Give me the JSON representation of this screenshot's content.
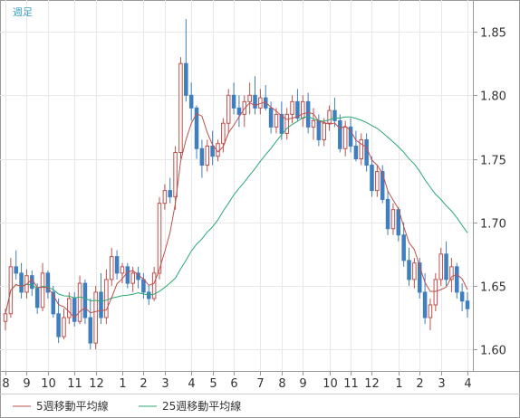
{
  "period_label": "週足",
  "legend": [
    {
      "name": "5週移動平均線",
      "color": "#c0504d"
    },
    {
      "name": "25週移動平均線",
      "color": "#2aa873"
    }
  ],
  "colors": {
    "up": "#c0504d",
    "down": "#3f7fbf",
    "axis": "#999999",
    "grid": "#e8e8e8",
    "period_label": "#3aa0c8"
  },
  "chart_data": {
    "type": "candlestick",
    "title": "",
    "period": "週足",
    "y_ticks": [
      1.6,
      1.65,
      1.7,
      1.75,
      1.8,
      1.85
    ],
    "ylim": [
      1.583,
      1.875
    ],
    "x_ticks": [
      {
        "label": "8",
        "index": 0
      },
      {
        "label": "9",
        "index": 4
      },
      {
        "label": "10",
        "index": 8
      },
      {
        "label": "11",
        "index": 13
      },
      {
        "label": "12",
        "index": 17
      },
      {
        "label": "1",
        "index": 22
      },
      {
        "label": "2",
        "index": 26
      },
      {
        "label": "3",
        "index": 30
      },
      {
        "label": "4",
        "index": 35
      },
      {
        "label": "5",
        "index": 39
      },
      {
        "label": "6",
        "index": 43
      },
      {
        "label": "7",
        "index": 48
      },
      {
        "label": "8",
        "index": 52
      },
      {
        "label": "9",
        "index": 56
      },
      {
        "label": "10",
        "index": 61
      },
      {
        "label": "11",
        "index": 65
      },
      {
        "label": "12",
        "index": 69
      },
      {
        "label": "1",
        "index": 74
      },
      {
        "label": "2",
        "index": 78
      },
      {
        "label": "3",
        "index": 82
      },
      {
        "label": "4",
        "index": 87
      }
    ],
    "candles": [
      [
        1.622,
        1.632,
        1.615,
        1.628
      ],
      [
        1.628,
        1.672,
        1.625,
        1.665
      ],
      [
        1.665,
        1.678,
        1.655,
        1.66
      ],
      [
        1.66,
        1.668,
        1.64,
        1.645
      ],
      [
        1.645,
        1.663,
        1.64,
        1.658
      ],
      [
        1.658,
        1.662,
        1.642,
        1.648
      ],
      [
        1.648,
        1.652,
        1.628,
        1.633
      ],
      [
        1.633,
        1.668,
        1.63,
        1.66
      ],
      [
        1.66,
        1.662,
        1.64,
        1.645
      ],
      [
        1.645,
        1.65,
        1.625,
        1.628
      ],
      [
        1.628,
        1.64,
        1.605,
        1.61
      ],
      [
        1.61,
        1.632,
        1.608,
        1.625
      ],
      [
        1.625,
        1.645,
        1.62,
        1.64
      ],
      [
        1.64,
        1.645,
        1.618,
        1.622
      ],
      [
        1.622,
        1.658,
        1.62,
        1.652
      ],
      [
        1.652,
        1.655,
        1.62,
        1.625
      ],
      [
        1.625,
        1.64,
        1.6,
        1.605
      ],
      [
        1.605,
        1.65,
        1.6,
        1.645
      ],
      [
        1.645,
        1.66,
        1.62,
        1.625
      ],
      [
        1.625,
        1.663,
        1.62,
        1.655
      ],
      [
        1.655,
        1.68,
        1.65,
        1.673
      ],
      [
        1.673,
        1.678,
        1.655,
        1.66
      ],
      [
        1.66,
        1.668,
        1.652,
        1.665
      ],
      [
        1.665,
        1.668,
        1.648,
        1.652
      ],
      [
        1.652,
        1.665,
        1.645,
        1.66
      ],
      [
        1.66,
        1.665,
        1.648,
        1.655
      ],
      [
        1.655,
        1.66,
        1.64,
        1.645
      ],
      [
        1.645,
        1.65,
        1.635,
        1.64
      ],
      [
        1.64,
        1.665,
        1.638,
        1.66
      ],
      [
        1.66,
        1.72,
        1.655,
        1.715
      ],
      [
        1.715,
        1.73,
        1.71,
        1.725
      ],
      [
        1.725,
        1.735,
        1.715,
        1.72
      ],
      [
        1.72,
        1.76,
        1.71,
        1.755
      ],
      [
        1.755,
        1.83,
        1.75,
        1.825
      ],
      [
        1.825,
        1.86,
        1.795,
        1.8
      ],
      [
        1.8,
        1.81,
        1.78,
        1.79
      ],
      [
        1.79,
        1.792,
        1.75,
        1.758
      ],
      [
        1.758,
        1.765,
        1.735,
        1.745
      ],
      [
        1.745,
        1.765,
        1.74,
        1.76
      ],
      [
        1.76,
        1.772,
        1.745,
        1.752
      ],
      [
        1.752,
        1.765,
        1.748,
        1.762
      ],
      [
        1.762,
        1.782,
        1.755,
        1.778
      ],
      [
        1.778,
        1.805,
        1.77,
        1.8
      ],
      [
        1.8,
        1.81,
        1.785,
        1.79
      ],
      [
        1.79,
        1.8,
        1.775,
        1.785
      ],
      [
        1.785,
        1.8,
        1.775,
        1.795
      ],
      [
        1.795,
        1.81,
        1.785,
        1.8
      ],
      [
        1.8,
        1.815,
        1.785,
        1.79
      ],
      [
        1.79,
        1.805,
        1.785,
        1.798
      ],
      [
        1.798,
        1.808,
        1.788,
        1.79
      ],
      [
        1.79,
        1.795,
        1.77,
        1.775
      ],
      [
        1.775,
        1.79,
        1.77,
        1.785
      ],
      [
        1.785,
        1.795,
        1.765,
        1.77
      ],
      [
        1.77,
        1.79,
        1.765,
        1.785
      ],
      [
        1.785,
        1.8,
        1.778,
        1.795
      ],
      [
        1.795,
        1.805,
        1.78,
        1.782
      ],
      [
        1.782,
        1.8,
        1.775,
        1.795
      ],
      [
        1.795,
        1.802,
        1.77,
        1.775
      ],
      [
        1.775,
        1.79,
        1.765,
        1.78
      ],
      [
        1.78,
        1.785,
        1.76,
        1.765
      ],
      [
        1.765,
        1.782,
        1.76,
        1.778
      ],
      [
        1.778,
        1.792,
        1.772,
        1.788
      ],
      [
        1.788,
        1.798,
        1.775,
        1.78
      ],
      [
        1.78,
        1.785,
        1.755,
        1.758
      ],
      [
        1.758,
        1.78,
        1.752,
        1.775
      ],
      [
        1.775,
        1.782,
        1.755,
        1.76
      ],
      [
        1.76,
        1.772,
        1.748,
        1.75
      ],
      [
        1.75,
        1.77,
        1.745,
        1.765
      ],
      [
        1.765,
        1.77,
        1.74,
        1.745
      ],
      [
        1.745,
        1.752,
        1.72,
        1.725
      ],
      [
        1.725,
        1.745,
        1.72,
        1.74
      ],
      [
        1.74,
        1.745,
        1.715,
        1.718
      ],
      [
        1.718,
        1.725,
        1.69,
        1.695
      ],
      [
        1.695,
        1.715,
        1.69,
        1.71
      ],
      [
        1.71,
        1.712,
        1.685,
        1.69
      ],
      [
        1.69,
        1.7,
        1.665,
        1.67
      ],
      [
        1.67,
        1.68,
        1.65,
        1.655
      ],
      [
        1.655,
        1.672,
        1.648,
        1.668
      ],
      [
        1.668,
        1.672,
        1.64,
        1.645
      ],
      [
        1.645,
        1.66,
        1.62,
        1.625
      ],
      [
        1.625,
        1.64,
        1.615,
        1.635
      ],
      [
        1.635,
        1.66,
        1.63,
        1.655
      ],
      [
        1.655,
        1.68,
        1.65,
        1.675
      ],
      [
        1.675,
        1.685,
        1.65,
        1.655
      ],
      [
        1.655,
        1.672,
        1.645,
        1.665
      ],
      [
        1.665,
        1.668,
        1.64,
        1.645
      ],
      [
        1.645,
        1.652,
        1.63,
        1.638
      ],
      [
        1.638,
        1.645,
        1.625,
        1.632
      ]
    ]
  }
}
